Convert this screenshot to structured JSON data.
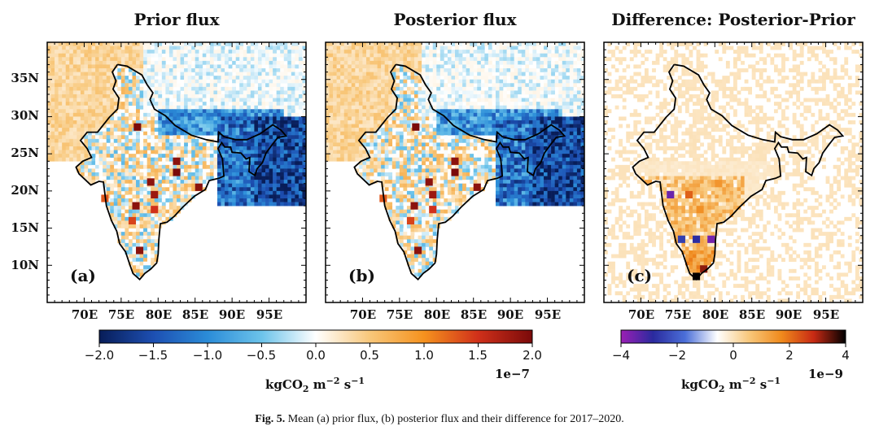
{
  "chart_data": [
    {
      "type": "heatmap",
      "panel": "(a)",
      "title": "Prior flux",
      "x_ticks": [
        "70E",
        "75E",
        "80E",
        "85E",
        "90E",
        "95E"
      ],
      "y_ticks": [
        "35N",
        "30N",
        "25N",
        "20N",
        "15N",
        "10N"
      ],
      "xlim": [
        65,
        100
      ],
      "ylim": [
        5,
        40
      ],
      "colormap": "diverging blue-white-orange-red",
      "vrange": [
        -2.0,
        2.0
      ],
      "hotspots": [
        {
          "lon": 77.2,
          "lat": 28.6,
          "value": 2.0
        },
        {
          "lon": 82.5,
          "lat": 24.0,
          "value": 1.9
        },
        {
          "lon": 82.5,
          "lat": 22.5,
          "value": 2.0
        },
        {
          "lon": 79.0,
          "lat": 21.2,
          "value": 1.9
        },
        {
          "lon": 79.5,
          "lat": 19.5,
          "value": 1.8
        },
        {
          "lon": 85.5,
          "lat": 20.5,
          "value": 1.9
        },
        {
          "lon": 77.0,
          "lat": 18.0,
          "value": 1.9
        },
        {
          "lon": 79.5,
          "lat": 17.5,
          "value": 1.5
        },
        {
          "lon": 76.5,
          "lat": 16.0,
          "value": 1.4
        },
        {
          "lon": 77.5,
          "lat": 12.0,
          "value": 1.9
        },
        {
          "lon": 72.8,
          "lat": 19.0,
          "value": 1.3
        }
      ]
    },
    {
      "type": "heatmap",
      "panel": "(b)",
      "title": "Posterior flux",
      "x_ticks": [
        "70E",
        "75E",
        "80E",
        "85E",
        "90E",
        "95E"
      ],
      "y_ticks": [],
      "xlim": [
        65,
        100
      ],
      "ylim": [
        5,
        40
      ],
      "colormap": "diverging blue-white-orange-red",
      "vrange": [
        -2.0,
        2.0
      ],
      "hotspots": [
        {
          "lon": 77.2,
          "lat": 28.6,
          "value": 2.0
        },
        {
          "lon": 82.5,
          "lat": 24.0,
          "value": 1.9
        },
        {
          "lon": 82.5,
          "lat": 22.5,
          "value": 2.0
        },
        {
          "lon": 79.0,
          "lat": 21.2,
          "value": 1.9
        },
        {
          "lon": 79.5,
          "lat": 19.5,
          "value": 1.8
        },
        {
          "lon": 85.5,
          "lat": 20.5,
          "value": 1.9
        },
        {
          "lon": 77.0,
          "lat": 18.0,
          "value": 1.9
        },
        {
          "lon": 79.5,
          "lat": 17.5,
          "value": 1.5
        },
        {
          "lon": 76.5,
          "lat": 16.0,
          "value": 1.4
        },
        {
          "lon": 77.5,
          "lat": 12.0,
          "value": 1.9
        },
        {
          "lon": 72.8,
          "lat": 19.0,
          "value": 1.3
        }
      ]
    },
    {
      "type": "heatmap",
      "panel": "(c)",
      "title": "Difference: Posterior-Prior",
      "x_ticks": [
        "70E",
        "75E",
        "80E",
        "85E",
        "90E",
        "95E"
      ],
      "y_ticks": [],
      "xlim": [
        65,
        100
      ],
      "ylim": [
        5,
        40
      ],
      "colormap": "purple-blue-white-orange-red-black",
      "vrange": [
        -4,
        4
      ],
      "hotspots": [
        {
          "lon": 77.5,
          "lat": 8.5,
          "value": 4.0
        },
        {
          "lon": 78.5,
          "lat": 9.5,
          "value": 3.2
        },
        {
          "lon": 74.0,
          "lat": 19.5,
          "value": -3.5
        },
        {
          "lon": 75.5,
          "lat": 13.5,
          "value": -2.5
        },
        {
          "lon": 77.5,
          "lat": 13.5,
          "value": -2.8
        },
        {
          "lon": 79.5,
          "lat": 13.5,
          "value": -3.6
        },
        {
          "lon": 76.5,
          "lat": 19.5,
          "value": 2.2
        },
        {
          "lon": 80.5,
          "lat": 21.0,
          "value": 1.5
        },
        {
          "lon": 78.0,
          "lat": 17.5,
          "value": 1.6
        }
      ]
    }
  ],
  "figure": {
    "panel_labels": [
      "(a)",
      "(b)",
      "(c)"
    ],
    "titles": [
      "Prior flux",
      "Posterior flux",
      "Difference: Posterior-Prior"
    ],
    "x_ticks": [
      "70E",
      "75E",
      "80E",
      "85E",
      "90E",
      "95E"
    ],
    "y_ticks": [
      "35N",
      "30N",
      "25N",
      "20N",
      "15N",
      "10N"
    ],
    "colorbar1": {
      "ticks": [
        "−2.0",
        "−1.5",
        "−1.0",
        "−0.5",
        "0.0",
        "0.5",
        "1.0",
        "1.5",
        "2.0"
      ],
      "exponent": "1e−7",
      "units": "kgCO2 m−2 s−1",
      "colors": [
        "#081d58",
        "#1d4fb2",
        "#2b8cd8",
        "#6cc3ea",
        "#ffffff",
        "#f8c77a",
        "#f5921e",
        "#d0301a",
        "#7a0a0a"
      ]
    },
    "colorbar2": {
      "ticks": [
        "−4",
        "−2",
        "0",
        "2",
        "4"
      ],
      "exponent": "1e−9",
      "units": "kgCO2 m−2 s−1",
      "colors": [
        "#9b1fb5",
        "#2a2a9e",
        "#4b6fd8",
        "#ffffff",
        "#f8c77a",
        "#f08a1c",
        "#c82a14",
        "#000000"
      ]
    },
    "caption_prefix": "Fig. 5.",
    "caption": "Mean (a) prior flux, (b) posterior flux and their difference for 2017–2020."
  }
}
